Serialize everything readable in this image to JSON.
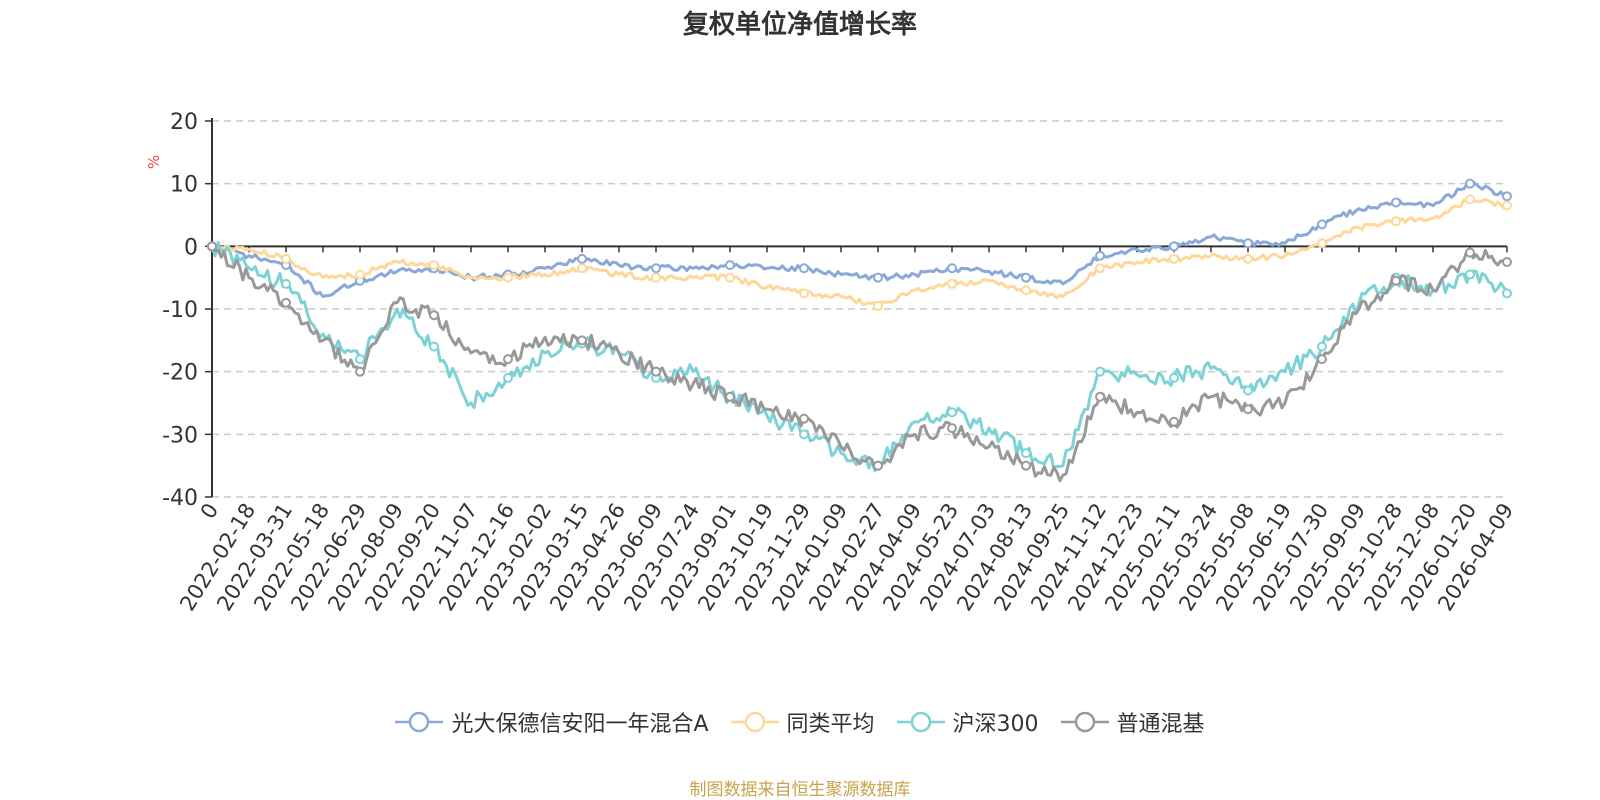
{
  "chart_data": {
    "type": "line",
    "title": "复权单位净值增长率",
    "ylabel": "%",
    "xlabel": "",
    "ylim": [
      -40,
      20
    ],
    "yticks": [
      20,
      10,
      0,
      -10,
      -20,
      -30,
      -40
    ],
    "grid": true,
    "legend_position": "bottom",
    "categories": [
      "0",
      "2022-02-18",
      "2022-03-31",
      "2022-05-18",
      "2022-06-29",
      "2022-08-09",
      "2022-09-20",
      "2022-11-07",
      "2022-12-16",
      "2023-02-02",
      "2023-03-15",
      "2023-04-26",
      "2023-06-09",
      "2023-07-24",
      "2023-09-01",
      "2023-10-19",
      "2023-11-29",
      "2024-01-09",
      "2024-02-27",
      "2024-04-09",
      "2024-05-23",
      "2024-07-03",
      "2024-08-13",
      "2024-09-25",
      "2024-11-12",
      "2024-12-23",
      "2025-02-11",
      "2025-03-24",
      "2025-05-08",
      "2025-06-19",
      "2025-07-30",
      "2025-09-09",
      "2025-10-28",
      "2025-12-08",
      "2026-01-20",
      "2026-04-09"
    ],
    "series": [
      {
        "name": "光大保德信安阳一年混合A",
        "color": "#8aa8d8",
        "values": [
          0,
          -1.5,
          -3,
          -8,
          -5.5,
          -4,
          -3.5,
          -5,
          -4.5,
          -3.5,
          -2,
          -3,
          -3.5,
          -3.5,
          -3,
          -3.5,
          -3.5,
          -4.5,
          -5,
          -4.5,
          -3.5,
          -4,
          -5,
          -6,
          -1.5,
          -0.5,
          0,
          1.5,
          0.5,
          0.5,
          3.5,
          6,
          7,
          6.5,
          10,
          8
        ]
      },
      {
        "name": "同类平均",
        "color": "#fdd89a",
        "values": [
          0,
          -0.5,
          -2,
          -5,
          -4.5,
          -2.5,
          -3,
          -5,
          -5,
          -4.5,
          -3.5,
          -4.5,
          -5,
          -5,
          -5,
          -6.5,
          -7.5,
          -8,
          -9.5,
          -7,
          -6,
          -5.5,
          -7,
          -8,
          -3.5,
          -2.5,
          -2,
          -1.5,
          -2,
          -1.5,
          0.5,
          3,
          4,
          4.5,
          7.5,
          6.5
        ]
      },
      {
        "name": "沪深300",
        "color": "#7dd2d6",
        "values": [
          0,
          -3.5,
          -6,
          -14,
          -18,
          -10,
          -16,
          -25,
          -21,
          -17,
          -15.5,
          -17,
          -21,
          -20,
          -24,
          -27,
          -30,
          -33,
          -35,
          -28,
          -26.5,
          -29,
          -33,
          -35,
          -20,
          -20.5,
          -21,
          -19.5,
          -23,
          -20,
          -16,
          -9,
          -5,
          -7,
          -4.5,
          -7.5
        ]
      },
      {
        "name": "普通混基",
        "color": "#999999",
        "values": [
          0,
          -5,
          -9,
          -15,
          -20,
          -9,
          -11,
          -17,
          -18,
          -14.5,
          -15,
          -17,
          -20,
          -22,
          -24,
          -26,
          -27.5,
          -32,
          -35,
          -30,
          -29,
          -32,
          -35,
          -36.5,
          -24,
          -26.5,
          -28,
          -24,
          -26,
          -25,
          -18,
          -10,
          -5.5,
          -7,
          -1,
          -2.5
        ]
      }
    ]
  },
  "source_text": "制图数据来自恒生聚源数据库"
}
